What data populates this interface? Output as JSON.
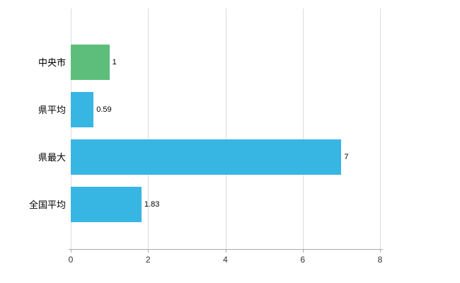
{
  "chart_data": {
    "type": "bar",
    "orientation": "horizontal",
    "title": "",
    "xlabel": "",
    "ylabel": "",
    "categories": [
      "中央市",
      "県平均",
      "県最大",
      "全国平均"
    ],
    "values": [
      1,
      0.59,
      7,
      1.83
    ],
    "value_labels": [
      "1",
      "0.59",
      "7",
      "1.83"
    ],
    "bar_colors": [
      "#5cbe7a",
      "#38b6e3",
      "#38b6e3",
      "#38b6e3"
    ],
    "xlim": [
      0,
      8
    ],
    "x_ticks": [
      0,
      2,
      4,
      6,
      8
    ],
    "grid": true,
    "grid_color": "#dcdcdc",
    "axis_color": "#ababab",
    "background": "#ffffff",
    "legend": "none"
  }
}
